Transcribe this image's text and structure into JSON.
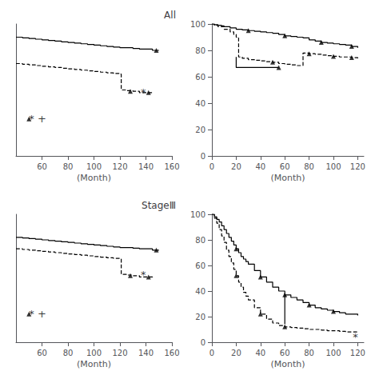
{
  "chart_data": [
    {
      "type": "step",
      "title": "All",
      "xlabel": "(Month)",
      "xlim": [
        40,
        160
      ],
      "xticks": [
        60,
        80,
        100,
        120,
        140,
        160
      ],
      "ylim": [
        0,
        100
      ],
      "yticks": [],
      "tick_labels": "x",
      "grid": false,
      "series": [
        {
          "type": "step",
          "line_style": "solid",
          "color": "#000000",
          "x": [
            40,
            45,
            50,
            55,
            60,
            65,
            70,
            75,
            80,
            85,
            90,
            95,
            100,
            105,
            110,
            115,
            120,
            125,
            130,
            135,
            140,
            145,
            150
          ],
          "values": [
            90,
            89.5,
            89,
            88.5,
            88,
            87.5,
            87,
            86.5,
            86,
            85.5,
            85,
            84.5,
            84,
            83.5,
            83,
            82.5,
            82,
            82,
            81.5,
            81,
            81,
            80,
            80
          ]
        },
        {
          "type": "step",
          "line_style": "dashed",
          "color": "#000000",
          "x": [
            40,
            45,
            50,
            55,
            60,
            65,
            70,
            75,
            80,
            85,
            90,
            95,
            100,
            105,
            110,
            115,
            120,
            121,
            125,
            130,
            135,
            140,
            145
          ],
          "values": [
            70,
            69.5,
            69,
            68.5,
            68,
            67.5,
            67,
            66.5,
            66,
            65.5,
            65,
            64.5,
            64,
            63.5,
            63,
            62.5,
            62,
            50,
            49.5,
            49,
            48,
            48,
            47
          ]
        },
        {
          "type": "scatter",
          "marker": "triangle",
          "color": "#000000",
          "x": [
            148
          ],
          "values": [
            80
          ]
        },
        {
          "type": "scatter",
          "marker": "triangle",
          "color": "#000000",
          "x": [
            128,
            142
          ],
          "values": [
            49,
            48
          ]
        },
        {
          "type": "scatter",
          "marker": "triangle",
          "color": "#000000",
          "x": [
            50
          ],
          "values": [
            28
          ]
        }
      ],
      "annotations": [
        {
          "text": "*",
          "x": 136,
          "y": 48
        },
        {
          "text": "* +",
          "x": 50,
          "y": 28
        }
      ]
    },
    {
      "type": "step",
      "xlabel": "(Month)",
      "xlim": [
        0,
        125
      ],
      "xticks": [
        0,
        20,
        40,
        60,
        80,
        100,
        120
      ],
      "ylim": [
        0,
        100
      ],
      "yticks": [
        0,
        20,
        40,
        60,
        80,
        100
      ],
      "grid": false,
      "series": [
        {
          "type": "step",
          "line_style": "solid",
          "color": "#000000",
          "x": [
            0,
            2,
            5,
            8,
            10,
            15,
            20,
            25,
            30,
            35,
            40,
            45,
            50,
            55,
            60,
            65,
            70,
            75,
            80,
            85,
            90,
            95,
            100,
            105,
            110,
            115,
            120
          ],
          "values": [
            100,
            99.5,
            99,
            98.5,
            98,
            97,
            96,
            95.5,
            95,
            94.5,
            94,
            93.5,
            93,
            92,
            91,
            90.5,
            90,
            89.5,
            88,
            87,
            86,
            85.5,
            85,
            84.5,
            84,
            83,
            82
          ]
        },
        {
          "type": "step",
          "line_style": "dashed",
          "color": "#000000",
          "x": [
            0,
            2,
            5,
            10,
            15,
            18,
            20,
            22,
            25,
            30,
            35,
            40,
            45,
            50,
            55,
            60,
            65,
            70,
            75,
            80,
            85,
            90,
            95,
            100,
            105,
            110,
            115,
            120
          ],
          "values": [
            100,
            99,
            98,
            96,
            94,
            92,
            90,
            75,
            74,
            73,
            72.5,
            72,
            71.5,
            71,
            70,
            69.5,
            69,
            68.5,
            78,
            77.5,
            77,
            76.5,
            76,
            75.5,
            75,
            75,
            74.5,
            74
          ]
        },
        {
          "type": "scatter",
          "marker": "triangle",
          "color": "#000000",
          "x": [
            30,
            60,
            90,
            115
          ],
          "values": [
            95,
            91,
            86,
            83
          ]
        },
        {
          "type": "scatter",
          "marker": "triangle",
          "color": "#000000",
          "x": [
            50,
            80,
            100,
            115
          ],
          "values": [
            71,
            77.5,
            75.5,
            74.5
          ]
        },
        {
          "type": "line",
          "line_style": "solid",
          "color": "#000000",
          "x": [
            20,
            20,
            55
          ],
          "values": [
            75,
            67,
            67
          ]
        },
        {
          "type": "scatter",
          "marker": "triangle",
          "color": "#000000",
          "x": [
            55
          ],
          "values": [
            67
          ]
        }
      ]
    },
    {
      "type": "step",
      "title": "StageⅢ",
      "xlabel": "(Month)",
      "xlim": [
        40,
        160
      ],
      "xticks": [
        60,
        80,
        100,
        120,
        140,
        160
      ],
      "ylim": [
        0,
        100
      ],
      "yticks": [],
      "tick_labels": "x",
      "grid": false,
      "series": [
        {
          "type": "step",
          "line_style": "solid",
          "color": "#000000",
          "x": [
            40,
            45,
            50,
            55,
            60,
            65,
            70,
            75,
            80,
            85,
            90,
            95,
            100,
            105,
            110,
            115,
            120,
            125,
            130,
            135,
            140,
            145,
            150
          ],
          "values": [
            82,
            81.5,
            81,
            80.5,
            80,
            79.5,
            79,
            78.5,
            78,
            77.5,
            77,
            76.5,
            76,
            75.5,
            75,
            74.5,
            74,
            74,
            73.5,
            73,
            73,
            72,
            72
          ]
        },
        {
          "type": "step",
          "line_style": "dashed",
          "color": "#000000",
          "x": [
            40,
            45,
            50,
            55,
            60,
            65,
            70,
            75,
            80,
            85,
            90,
            95,
            100,
            105,
            110,
            115,
            120,
            121,
            125,
            130,
            135,
            140,
            145
          ],
          "values": [
            73,
            72.5,
            72,
            71.5,
            71,
            70.5,
            70,
            69.5,
            69,
            68.5,
            68,
            67.5,
            67,
            66.5,
            66,
            65.5,
            65,
            53,
            52.5,
            52,
            51,
            51,
            50
          ]
        },
        {
          "type": "scatter",
          "marker": "triangle",
          "color": "#000000",
          "x": [
            148
          ],
          "values": [
            72
          ]
        },
        {
          "type": "scatter",
          "marker": "triangle",
          "color": "#000000",
          "x": [
            128,
            142
          ],
          "values": [
            52,
            51
          ]
        },
        {
          "type": "scatter",
          "marker": "triangle",
          "color": "#000000",
          "x": [
            50
          ],
          "values": [
            22
          ]
        }
      ],
      "annotations": [
        {
          "text": "*",
          "x": 136,
          "y": 53
        },
        {
          "text": "* +",
          "x": 50,
          "y": 22
        }
      ]
    },
    {
      "type": "step",
      "xlabel": "(Month)",
      "xlim": [
        0,
        125
      ],
      "xticks": [
        0,
        20,
        40,
        60,
        80,
        100,
        120
      ],
      "ylim": [
        0,
        100
      ],
      "yticks": [
        0,
        20,
        40,
        60,
        80,
        100
      ],
      "grid": false,
      "series": [
        {
          "type": "step",
          "line_style": "solid",
          "color": "#000000",
          "x": [
            0,
            2,
            4,
            6,
            8,
            10,
            12,
            14,
            16,
            18,
            20,
            22,
            24,
            26,
            28,
            30,
            35,
            40,
            45,
            50,
            55,
            60,
            65,
            70,
            75,
            80,
            85,
            90,
            95,
            100,
            105,
            110,
            115,
            120
          ],
          "values": [
            100,
            98,
            96,
            94,
            91,
            88,
            85,
            82,
            79,
            76,
            73,
            70,
            67,
            65,
            63,
            61,
            56,
            51,
            47,
            43,
            40,
            37,
            35,
            33,
            31,
            29,
            27,
            26,
            25,
            24,
            23,
            22,
            22,
            21
          ]
        },
        {
          "type": "step",
          "line_style": "dashed",
          "color": "#000000",
          "x": [
            0,
            2,
            4,
            6,
            8,
            10,
            12,
            14,
            16,
            18,
            20,
            22,
            24,
            26,
            28,
            30,
            35,
            40,
            45,
            50,
            55,
            60,
            65,
            70,
            75,
            80,
            85,
            90,
            95,
            100,
            105,
            110,
            115,
            120
          ],
          "values": [
            100,
            97,
            93,
            88,
            83,
            78,
            72,
            67,
            62,
            57,
            52,
            47,
            43,
            39,
            36,
            33,
            27,
            22,
            18,
            15,
            13,
            12,
            11.5,
            11,
            10.5,
            10,
            10,
            9.5,
            9,
            9,
            8.5,
            8,
            8,
            7
          ]
        },
        {
          "type": "scatter",
          "marker": "triangle",
          "color": "#000000",
          "x": [
            20,
            40,
            60,
            80,
            100
          ],
          "values": [
            73,
            51,
            37,
            29,
            24
          ]
        },
        {
          "type": "scatter",
          "marker": "triangle",
          "color": "#000000",
          "x": [
            20,
            40,
            60
          ],
          "values": [
            52,
            22,
            12
          ]
        },
        {
          "type": "line",
          "line_style": "solid",
          "color": "#000000",
          "x": [
            60,
            60
          ],
          "values": [
            37,
            14
          ]
        }
      ],
      "annotations": [
        {
          "text": "*",
          "x": 116,
          "y": 4
        }
      ]
    }
  ]
}
